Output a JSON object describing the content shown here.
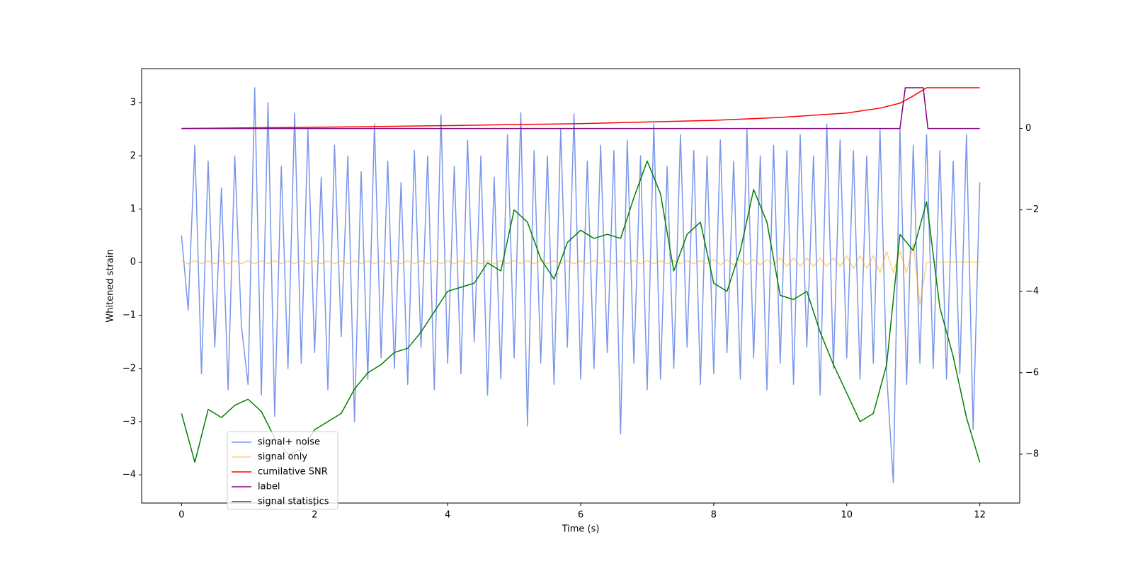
{
  "chart_data": {
    "type": "line",
    "xlabel": "Time (s)",
    "ylabel": "Whitened strain",
    "x": [
      0,
      0.1,
      0.2,
      0.3,
      0.4,
      0.5,
      0.6,
      0.7,
      0.8,
      0.9,
      1,
      1.1,
      1.2,
      1.3,
      1.4,
      1.5,
      1.6,
      1.7,
      1.8,
      1.9,
      2,
      2.1,
      2.2,
      2.3,
      2.4,
      2.5,
      2.6,
      2.7,
      2.8,
      2.9,
      3,
      3.1,
      3.2,
      3.3,
      3.4,
      3.5,
      3.6,
      3.7,
      3.8,
      3.9,
      4,
      4.1,
      4.2,
      4.3,
      4.4,
      4.5,
      4.6,
      4.7,
      4.8,
      4.9,
      5,
      5.1,
      5.2,
      5.3,
      5.4,
      5.5,
      5.6,
      5.7,
      5.8,
      5.9,
      6,
      6.1,
      6.2,
      6.3,
      6.4,
      6.5,
      6.6,
      6.7,
      6.8,
      6.9,
      7,
      7.1,
      7.2,
      7.3,
      7.4,
      7.5,
      7.6,
      7.7,
      7.8,
      7.9,
      8,
      8.1,
      8.2,
      8.3,
      8.4,
      8.5,
      8.6,
      8.7,
      8.8,
      8.9,
      9,
      9.1,
      9.2,
      9.3,
      9.4,
      9.5,
      9.6,
      9.7,
      9.8,
      9.9,
      10,
      10.1,
      10.2,
      10.3,
      10.4,
      10.5,
      10.6,
      10.7,
      10.8,
      10.9,
      11,
      11.1,
      11.2,
      11.3,
      11.4,
      11.5,
      11.6,
      11.7,
      11.8,
      11.9,
      12
    ],
    "series": [
      {
        "name": "signal+ noise",
        "color": "#4169e1",
        "opacity": 0.7,
        "values": [
          0.5,
          -0.9,
          2.2,
          -2.1,
          1.9,
          -1.6,
          1.4,
          -2.4,
          2.0,
          -1.2,
          -2.3,
          3.28,
          -2.5,
          3.0,
          -2.9,
          1.8,
          -2.0,
          2.8,
          -1.9,
          2.5,
          -1.7,
          1.6,
          -2.4,
          2.2,
          -1.4,
          2.0,
          -3.0,
          1.7,
          -2.2,
          2.6,
          -1.8,
          1.9,
          -2.0,
          1.5,
          -2.3,
          2.1,
          -1.6,
          2.0,
          -2.4,
          2.77,
          -1.9,
          1.8,
          -2.1,
          2.3,
          -1.5,
          2.0,
          -2.5,
          1.6,
          -2.2,
          2.4,
          -1.8,
          2.81,
          -3.08,
          2.1,
          -1.9,
          2.0,
          -2.3,
          2.5,
          -1.6,
          2.79,
          -2.2,
          1.9,
          -2.0,
          2.2,
          -1.7,
          2.1,
          -3.23,
          2.3,
          -1.9,
          2.0,
          -2.4,
          2.6,
          -2.2,
          1.8,
          -2.0,
          2.4,
          -1.6,
          2.1,
          -2.3,
          2.0,
          -2.1,
          2.3,
          -1.7,
          1.9,
          -2.2,
          2.5,
          -1.8,
          2.0,
          -2.4,
          2.2,
          -1.9,
          2.1,
          -2.3,
          2.4,
          -1.6,
          2.0,
          -2.5,
          2.6,
          -2.0,
          2.3,
          -1.8,
          2.1,
          -2.2,
          2.0,
          -1.9,
          2.5,
          -2.1,
          -4.15,
          2.5,
          -2.3,
          2.2,
          -1.9,
          2.4,
          -2.0,
          2.1,
          -2.2,
          1.9,
          -2.1,
          2.4,
          -3.15,
          1.5
        ]
      },
      {
        "name": "signal only",
        "color": "#ffa500",
        "opacity": 0.5,
        "values": [
          0.03,
          -0.03,
          0.03,
          -0.03,
          0.03,
          -0.03,
          0.03,
          -0.03,
          0.03,
          -0.03,
          0.03,
          -0.03,
          0.03,
          -0.03,
          0.03,
          -0.03,
          0.03,
          -0.03,
          0.03,
          -0.03,
          0.03,
          -0.03,
          0.03,
          -0.03,
          0.03,
          -0.03,
          0.03,
          -0.03,
          0.03,
          -0.03,
          0.03,
          -0.03,
          0.03,
          -0.03,
          0.03,
          -0.03,
          0.03,
          -0.03,
          0.03,
          -0.03,
          0.03,
          -0.03,
          0.03,
          -0.03,
          0.03,
          -0.03,
          0.03,
          -0.03,
          0.03,
          -0.03,
          0.03,
          -0.03,
          0.03,
          -0.03,
          0.03,
          -0.03,
          0.03,
          -0.03,
          0.03,
          -0.03,
          0.03,
          -0.03,
          0.03,
          -0.03,
          0.03,
          -0.03,
          0.03,
          -0.03,
          0.03,
          -0.03,
          0.03,
          -0.03,
          0.03,
          -0.03,
          0.03,
          -0.03,
          0.03,
          -0.03,
          0.03,
          -0.03,
          0.05,
          -0.05,
          0.05,
          -0.05,
          0.05,
          -0.05,
          0.05,
          -0.05,
          0.05,
          -0.05,
          0.08,
          -0.08,
          0.08,
          -0.08,
          0.08,
          -0.08,
          0.08,
          -0.08,
          0.08,
          -0.08,
          0.12,
          -0.12,
          0.12,
          -0.12,
          0.12,
          -0.2,
          0.2,
          -0.2,
          0.2,
          -0.2,
          0.35,
          -0.8,
          0,
          0,
          0,
          0,
          0,
          0,
          0,
          0,
          0
        ]
      },
      {
        "name": "cumilative SNR",
        "color": "#ff0000",
        "axis": "y2",
        "x": [
          0,
          2,
          4,
          6,
          8,
          9,
          10,
          10.5,
          10.8,
          11,
          11.2,
          12
        ],
        "values": [
          0,
          0.03,
          0.07,
          0.12,
          0.2,
          0.27,
          0.38,
          0.5,
          0.62,
          0.8,
          1,
          1
        ]
      },
      {
        "name": "label",
        "color": "#800080",
        "axis": "y2",
        "x": [
          0,
          10.8,
          10.88,
          11.15,
          11.22,
          12
        ],
        "values": [
          0,
          0,
          1,
          1,
          0,
          0
        ]
      },
      {
        "name": "signal statistics",
        "color": "#008000",
        "axis": "y2",
        "x": [
          0,
          0.2,
          0.4,
          0.6,
          0.8,
          1,
          1.2,
          1.4,
          1.6,
          1.8,
          2,
          2.2,
          2.4,
          2.6,
          2.8,
          3,
          3.2,
          3.4,
          3.6,
          3.8,
          4,
          4.2,
          4.4,
          4.6,
          4.8,
          5,
          5.2,
          5.4,
          5.6,
          5.8,
          6,
          6.2,
          6.4,
          6.6,
          6.8,
          7,
          7.2,
          7.4,
          7.6,
          7.8,
          8,
          8.2,
          8.4,
          8.6,
          8.8,
          9,
          9.2,
          9.4,
          9.6,
          9.8,
          10,
          10.2,
          10.4,
          10.6,
          10.8,
          11,
          11.2,
          11.4,
          11.6,
          11.8,
          12
        ],
        "values": [
          -7.0,
          -8.2,
          -6.9,
          -7.1,
          -6.8,
          -6.65,
          -6.95,
          -7.6,
          -8.0,
          -7.9,
          -7.4,
          -7.2,
          -7.0,
          -6.4,
          -6.0,
          -5.8,
          -5.5,
          -5.4,
          -5.0,
          -4.5,
          -4.0,
          -3.9,
          -3.8,
          -3.3,
          -3.5,
          -2.0,
          -2.3,
          -3.2,
          -3.7,
          -2.8,
          -2.5,
          -2.7,
          -2.6,
          -2.7,
          -1.7,
          -0.8,
          -1.6,
          -3.5,
          -2.6,
          -2.3,
          -3.8,
          -4.0,
          -3.0,
          -1.5,
          -2.3,
          -4.1,
          -4.2,
          -4.0,
          -5.0,
          -5.8,
          -6.5,
          -7.2,
          -7.0,
          -5.8,
          -2.6,
          -3.0,
          -1.8,
          -4.4,
          -5.6,
          -7.1,
          -8.2
        ]
      }
    ],
    "xlim": [
      -0.6,
      12.6
    ],
    "xticks": [
      0,
      2,
      4,
      6,
      8,
      10,
      12
    ],
    "ylim": [
      -4.53,
      3.64
    ],
    "yticks": [
      {
        "value": -4,
        "label": "−4"
      },
      {
        "value": -3,
        "label": "−3"
      },
      {
        "value": -2,
        "label": "−2"
      },
      {
        "value": -1,
        "label": "−1"
      },
      0,
      1,
      2,
      3
    ],
    "y2lim": [
      -9.2,
      1.47
    ],
    "y2ticks": [
      {
        "value": -8,
        "label": "−8"
      },
      {
        "value": -6,
        "label": "−6"
      },
      {
        "value": -4,
        "label": "−4"
      },
      {
        "value": -2,
        "label": "−2"
      },
      0
    ]
  }
}
